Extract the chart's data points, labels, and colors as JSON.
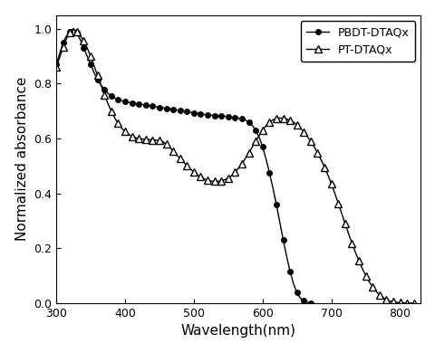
{
  "title": "",
  "xlabel": "Wavelength(nm)",
  "ylabel": "Normalized absorbance",
  "xlim": [
    300,
    830
  ],
  "ylim": [
    0.0,
    1.05
  ],
  "xticks": [
    300,
    400,
    500,
    600,
    700,
    800
  ],
  "yticks": [
    0.0,
    0.2,
    0.4,
    0.6,
    0.8,
    1.0
  ],
  "series1_label": "PBDT-DTAQx",
  "series2_label": "PT-DTAQx",
  "pbdt_x": [
    300,
    305,
    310,
    315,
    320,
    325,
    330,
    335,
    340,
    345,
    350,
    355,
    360,
    365,
    370,
    375,
    380,
    385,
    390,
    395,
    400,
    405,
    410,
    415,
    420,
    425,
    430,
    435,
    440,
    445,
    450,
    455,
    460,
    465,
    470,
    475,
    480,
    485,
    490,
    495,
    500,
    505,
    510,
    515,
    520,
    525,
    530,
    535,
    540,
    545,
    550,
    555,
    560,
    565,
    570,
    575,
    580,
    585,
    590,
    595,
    600,
    605,
    610,
    615,
    620,
    625,
    630,
    635,
    640,
    645,
    650,
    655,
    660,
    665,
    670
  ],
  "pbdt_y": [
    0.87,
    0.91,
    0.95,
    0.975,
    0.99,
    1.0,
    0.985,
    0.96,
    0.93,
    0.9,
    0.87,
    0.84,
    0.815,
    0.795,
    0.78,
    0.765,
    0.755,
    0.748,
    0.742,
    0.738,
    0.735,
    0.732,
    0.73,
    0.728,
    0.726,
    0.724,
    0.722,
    0.72,
    0.718,
    0.716,
    0.714,
    0.712,
    0.71,
    0.708,
    0.706,
    0.704,
    0.702,
    0.7,
    0.698,
    0.696,
    0.694,
    0.692,
    0.69,
    0.688,
    0.686,
    0.685,
    0.684,
    0.683,
    0.682,
    0.681,
    0.68,
    0.678,
    0.676,
    0.674,
    0.672,
    0.668,
    0.66,
    0.648,
    0.63,
    0.605,
    0.57,
    0.525,
    0.475,
    0.42,
    0.36,
    0.295,
    0.23,
    0.17,
    0.115,
    0.07,
    0.038,
    0.018,
    0.008,
    0.003,
    0.001
  ],
  "pt_x": [
    300,
    305,
    310,
    315,
    320,
    325,
    330,
    335,
    340,
    345,
    350,
    355,
    360,
    365,
    370,
    375,
    380,
    385,
    390,
    395,
    400,
    405,
    410,
    415,
    420,
    425,
    430,
    435,
    440,
    445,
    450,
    455,
    460,
    465,
    470,
    475,
    480,
    485,
    490,
    495,
    500,
    505,
    510,
    515,
    520,
    525,
    530,
    535,
    540,
    545,
    550,
    555,
    560,
    565,
    570,
    575,
    580,
    585,
    590,
    595,
    600,
    605,
    610,
    615,
    620,
    625,
    630,
    635,
    640,
    645,
    650,
    655,
    660,
    665,
    670,
    675,
    680,
    685,
    690,
    695,
    700,
    705,
    710,
    715,
    720,
    725,
    730,
    735,
    740,
    745,
    750,
    755,
    760,
    765,
    770,
    775,
    780,
    785,
    790,
    795,
    800,
    805,
    810,
    815,
    820
  ],
  "pt_y": [
    0.86,
    0.895,
    0.935,
    0.965,
    0.985,
    1.0,
    0.99,
    0.975,
    0.955,
    0.93,
    0.9,
    0.865,
    0.83,
    0.795,
    0.76,
    0.728,
    0.7,
    0.675,
    0.655,
    0.638,
    0.625,
    0.615,
    0.608,
    0.603,
    0.6,
    0.598,
    0.597,
    0.596,
    0.595,
    0.594,
    0.592,
    0.588,
    0.58,
    0.568,
    0.554,
    0.54,
    0.527,
    0.514,
    0.501,
    0.489,
    0.478,
    0.468,
    0.46,
    0.453,
    0.448,
    0.445,
    0.444,
    0.444,
    0.446,
    0.45,
    0.456,
    0.465,
    0.477,
    0.492,
    0.509,
    0.528,
    0.548,
    0.569,
    0.59,
    0.611,
    0.63,
    0.647,
    0.66,
    0.668,
    0.673,
    0.675,
    0.674,
    0.671,
    0.666,
    0.659,
    0.65,
    0.638,
    0.624,
    0.608,
    0.59,
    0.57,
    0.548,
    0.523,
    0.496,
    0.467,
    0.435,
    0.4,
    0.364,
    0.327,
    0.29,
    0.253,
    0.218,
    0.185,
    0.154,
    0.126,
    0.1,
    0.078,
    0.059,
    0.043,
    0.03,
    0.02,
    0.013,
    0.008,
    0.005,
    0.003,
    0.002,
    0.001,
    0.001,
    0.0,
    0.0
  ],
  "line_color": "#000000",
  "marker1": "o",
  "marker2": "^",
  "marker_size1": 4,
  "marker_size2": 6,
  "marker_fill1": "black",
  "marker_fill2": "white",
  "legend_loc": "upper right",
  "legend_fontsize": 9,
  "tick_fontsize": 9,
  "label_fontsize": 11,
  "marker_every1": 2,
  "marker_every2": 2
}
